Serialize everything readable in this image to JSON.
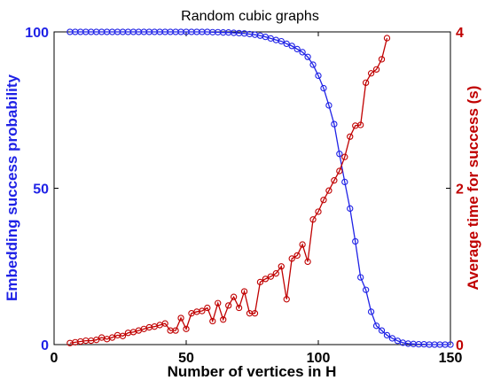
{
  "chart_data": {
    "type": "line",
    "title": "Random cubic graphs",
    "xlabel": "Number of vertices in H",
    "ylabel_left": "Embedding success probability",
    "ylabel_right": "Average time for success (s)",
    "xlim": [
      0,
      150
    ],
    "ylim_left": [
      0,
      100
    ],
    "ylim_right": [
      0,
      4
    ],
    "xticks": [
      "0",
      "50",
      "100",
      "150"
    ],
    "yticks_left": [
      "0",
      "50",
      "100"
    ],
    "yticks_right": [
      "0",
      "2",
      "4"
    ],
    "grid": false,
    "legend": "none",
    "colors": {
      "left_series": "#1f22e6",
      "right_series": "#c00000",
      "axes": "#000000"
    },
    "series": [
      {
        "axis": "left",
        "marker": "circle",
        "x": [
          6,
          8,
          10,
          12,
          14,
          16,
          18,
          20,
          22,
          24,
          26,
          28,
          30,
          32,
          34,
          36,
          38,
          40,
          42,
          44,
          46,
          48,
          50,
          52,
          54,
          56,
          58,
          60,
          62,
          64,
          66,
          68,
          70,
          72,
          74,
          76,
          78,
          80,
          82,
          84,
          86,
          88,
          90,
          92,
          94,
          96,
          98,
          100,
          102,
          104,
          106,
          108,
          110,
          112,
          114,
          116,
          118,
          120,
          122,
          124,
          126,
          128,
          130,
          132,
          134,
          136,
          138,
          140,
          142,
          144,
          146,
          148,
          150
        ],
        "y": [
          100,
          100,
          100,
          100,
          100,
          100,
          100,
          100,
          100,
          100,
          100,
          100,
          100,
          100,
          100,
          100,
          100,
          100,
          100,
          100,
          100,
          100,
          100,
          100,
          100,
          100,
          100,
          99.9,
          99.9,
          99.8,
          99.8,
          99.7,
          99.6,
          99.5,
          99.3,
          99.1,
          98.8,
          98.4,
          97.9,
          97.4,
          97,
          96.2,
          95.5,
          94.5,
          93.5,
          92,
          89.5,
          86,
          82,
          76.5,
          70.5,
          61,
          52,
          43.5,
          33,
          21.5,
          17.5,
          10.5,
          6,
          4.5,
          3,
          2,
          1.2,
          0.6,
          0.3,
          0.2,
          0.1,
          0.1,
          0,
          0,
          0,
          0,
          0
        ]
      },
      {
        "axis": "right",
        "marker": "circle",
        "x": [
          6,
          8,
          10,
          12,
          14,
          16,
          18,
          20,
          22,
          24,
          26,
          28,
          30,
          32,
          34,
          36,
          38,
          40,
          42,
          44,
          46,
          48,
          50,
          52,
          54,
          56,
          58,
          60,
          62,
          64,
          66,
          68,
          70,
          72,
          74,
          76,
          78,
          80,
          82,
          84,
          86,
          88,
          90,
          92,
          94,
          96,
          98,
          100,
          102,
          104,
          106,
          108,
          110,
          112,
          114,
          116,
          118,
          120,
          122,
          124,
          126
        ],
        "y": [
          0.02,
          0.03,
          0.04,
          0.05,
          0.05,
          0.06,
          0.09,
          0.07,
          0.09,
          0.12,
          0.11,
          0.15,
          0.16,
          0.18,
          0.2,
          0.22,
          0.23,
          0.25,
          0.27,
          0.18,
          0.18,
          0.34,
          0.2,
          0.4,
          0.42,
          0.43,
          0.47,
          0.3,
          0.53,
          0.32,
          0.5,
          0.61,
          0.47,
          0.68,
          0.4,
          0.4,
          0.8,
          0.84,
          0.87,
          0.91,
          1,
          0.58,
          1.1,
          1.14,
          1.28,
          1.06,
          1.6,
          1.7,
          1.85,
          1.97,
          2.1,
          2.22,
          2.4,
          2.66,
          2.8,
          2.81,
          3.35,
          3.47,
          3.52,
          3.65,
          3.92
        ]
      }
    ]
  }
}
